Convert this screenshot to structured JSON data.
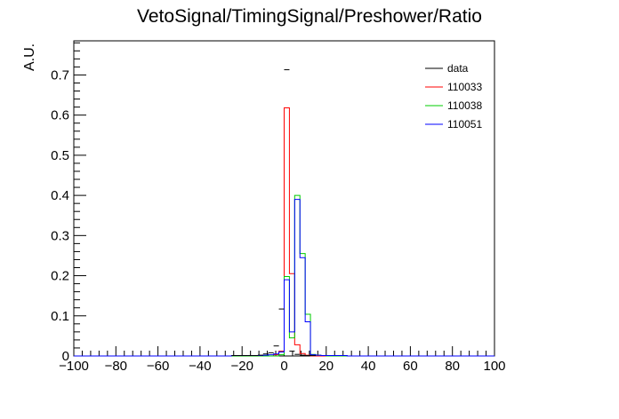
{
  "chart_data": {
    "type": "histogram",
    "title": "VetoSignal/TimingSignal/Preshower/Ratio",
    "xlabel": "",
    "ylabel": "A.U.",
    "xlim": [
      -100,
      100
    ],
    "ylim": [
      0,
      0.785
    ],
    "x_ticks": [
      -100,
      -80,
      -60,
      -40,
      -20,
      0,
      20,
      40,
      60,
      80,
      100
    ],
    "y_ticks": [
      0,
      0.1,
      0.2,
      0.3,
      0.4,
      0.5,
      0.6,
      0.7
    ],
    "y_tick_labels": [
      "0",
      "0.1",
      "0.2",
      "0.3",
      "0.4",
      "0.5",
      "0.6",
      "0.7"
    ],
    "grid": false,
    "legend_position": "top-right",
    "bin_edges": [
      -100,
      -97.5,
      -95,
      -92.5,
      -90,
      -87.5,
      -85,
      -82.5,
      -80,
      -77.5,
      -75,
      -72.5,
      -70,
      -67.5,
      -65,
      -62.5,
      -60,
      -57.5,
      -55,
      -52.5,
      -50,
      -47.5,
      -45,
      -42.5,
      -40,
      -37.5,
      -35,
      -32.5,
      -30,
      -27.5,
      -25,
      -22.5,
      -20,
      -17.5,
      -15,
      -12.5,
      -10,
      -7.5,
      -5,
      -2.5,
      0,
      2.5,
      5,
      7.5,
      10,
      12.5,
      15,
      17.5,
      20,
      22.5,
      25,
      27.5,
      30,
      32.5,
      35,
      37.5,
      40,
      42.5,
      45,
      47.5,
      50,
      52.5,
      55,
      57.5,
      60,
      62.5,
      65,
      67.5,
      70,
      72.5,
      75,
      77.5,
      80,
      82.5,
      85,
      87.5,
      90,
      92.5,
      95,
      97.5,
      100
    ],
    "series": [
      {
        "name": "data",
        "style": "markers",
        "color": "#000000",
        "points": [
          {
            "x": -23.75,
            "y": 0.001
          },
          {
            "x": -21.25,
            "y": 0.001
          },
          {
            "x": -18.75,
            "y": 0.001
          },
          {
            "x": -16.25,
            "y": 0.001
          },
          {
            "x": -13.75,
            "y": 0.001
          },
          {
            "x": -11.25,
            "y": 0.002
          },
          {
            "x": -8.75,
            "y": 0.005
          },
          {
            "x": -6.25,
            "y": 0.008
          },
          {
            "x": -3.75,
            "y": 0.025
          },
          {
            "x": -1.25,
            "y": 0.117
          },
          {
            "x": 1.25,
            "y": 0.713
          },
          {
            "x": 3.75,
            "y": 0.012
          },
          {
            "x": 6.25,
            "y": 0.004
          },
          {
            "x": 8.75,
            "y": 0.002
          },
          {
            "x": 11.25,
            "y": 0.001
          },
          {
            "x": 13.75,
            "y": 0.001
          }
        ]
      },
      {
        "name": "110033",
        "style": "step",
        "color": "#ff0000",
        "bins": {
          "-5": 0.003,
          "-2.5": 0.012,
          "0": 0.618,
          "2.5": 0.205,
          "5": 0.028,
          "7.5": 0.006,
          "10": 0.002
        }
      },
      {
        "name": "110038",
        "style": "step",
        "color": "#00cc00",
        "bins": {
          "-2.5": 0.003,
          "0": 0.198,
          "2.5": 0.045,
          "5": 0.4,
          "7.5": 0.255,
          "10": 0.104,
          "12.5": 0.004,
          "15": 0.002,
          "17.5": 0.001
        }
      },
      {
        "name": "110051",
        "style": "step",
        "color": "#0000ff",
        "bins": {
          "-25": 0.001,
          "-22.5": 0.001,
          "-20": 0.001,
          "-17.5": 0.001,
          "-15": 0.001,
          "-12.5": 0.001,
          "-10": 0.002,
          "-7.5": 0.003,
          "-5": 0.005,
          "-2.5": 0.01,
          "0": 0.19,
          "2.5": 0.06,
          "5": 0.39,
          "7.5": 0.245,
          "10": 0.085,
          "12.5": 0.003,
          "15": 0.002,
          "17.5": 0.001,
          "20": 0.001,
          "22.5": 0.001,
          "25": 0.001,
          "27.5": 0.001
        }
      }
    ]
  }
}
